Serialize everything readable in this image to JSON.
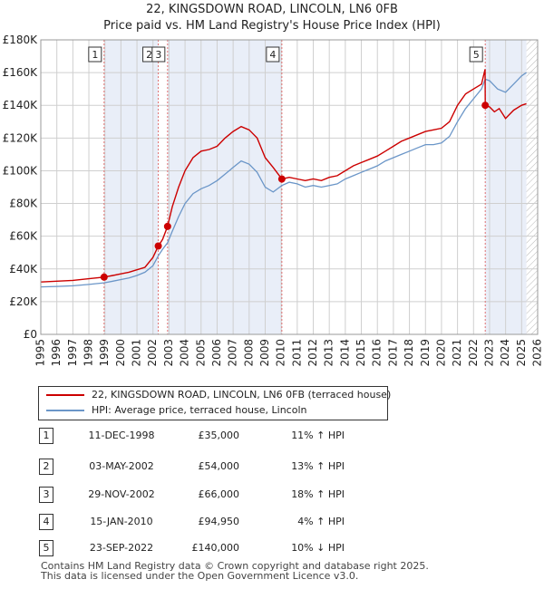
{
  "title": "22, KINGSDOWN ROAD, LINCOLN, LN6 0FB",
  "subtitle": "Price paid vs. HM Land Registry's House Price Index (HPI)",
  "colors": {
    "property": "#cc0000",
    "hpi": "#6b96c8",
    "band": "#e9eef8",
    "grid": "#cfcfcf",
    "vline": "#e07070"
  },
  "chart_data": {
    "type": "line",
    "ylabel": "",
    "xlabel": "",
    "xlim": [
      1995,
      2026
    ],
    "ylim": [
      0,
      180000
    ],
    "grid": true,
    "y_ticks": [
      0,
      20000,
      40000,
      60000,
      80000,
      100000,
      120000,
      140000,
      160000,
      180000
    ],
    "y_tick_labels": [
      "£0",
      "£20K",
      "£40K",
      "£60K",
      "£80K",
      "£100K",
      "£120K",
      "£140K",
      "£160K",
      "£180K"
    ],
    "x_ticks": [
      1995,
      1996,
      1997,
      1998,
      1999,
      2000,
      2001,
      2002,
      2003,
      2004,
      2005,
      2006,
      2007,
      2008,
      2009,
      2010,
      2011,
      2012,
      2013,
      2014,
      2015,
      2016,
      2017,
      2018,
      2019,
      2020,
      2021,
      2022,
      2023,
      2024,
      2025,
      2026
    ],
    "x_tick_labels": [
      "1995",
      "1996",
      "1997",
      "1998",
      "1999",
      "2000",
      "2001",
      "2002",
      "2003",
      "2004",
      "2005",
      "2006",
      "2007",
      "2008",
      "2009",
      "2010",
      "2011",
      "2012",
      "2013",
      "2014",
      "2015",
      "2016",
      "2017",
      "2018",
      "2019",
      "2020",
      "2021",
      "2022",
      "2023",
      "2024",
      "2025",
      "2026"
    ],
    "shaded_ranges": [
      [
        1998.95,
        2002.33
      ],
      [
        2002.91,
        2010.04
      ],
      [
        2022.73,
        2025.3
      ]
    ],
    "hatched_range": [
      2025.3,
      2026
    ],
    "series": [
      {
        "name": "22, KINGSDOWN ROAD, LINCOLN, LN6 0FB (terraced house)",
        "x": [
          1995.0,
          1996.0,
          1997.0,
          1998.0,
          1998.95,
          1999.5,
          2000.0,
          2000.5,
          2001.0,
          2001.5,
          2002.0,
          2002.33,
          2002.6,
          2002.91,
          2003.2,
          2003.6,
          2004.0,
          2004.5,
          2005.0,
          2005.5,
          2006.0,
          2006.5,
          2007.0,
          2007.5,
          2008.0,
          2008.5,
          2009.0,
          2009.5,
          2010.04,
          2010.5,
          2011.0,
          2011.5,
          2012.0,
          2012.5,
          2013.0,
          2013.5,
          2014.0,
          2014.5,
          2015.0,
          2015.5,
          2016.0,
          2016.5,
          2017.0,
          2017.5,
          2018.0,
          2018.5,
          2019.0,
          2019.5,
          2020.0,
          2020.5,
          2021.0,
          2021.5,
          2022.0,
          2022.5,
          2022.72,
          2022.73,
          2023.0,
          2023.3,
          2023.6,
          2024.0,
          2024.5,
          2025.0,
          2025.3
        ],
        "values": [
          32000,
          32500,
          33000,
          34000,
          35000,
          36000,
          37000,
          38000,
          39500,
          41000,
          47000,
          54000,
          58000,
          66000,
          78000,
          90000,
          100000,
          108000,
          112000,
          113000,
          115000,
          120000,
          124000,
          127000,
          125000,
          120000,
          108000,
          102000,
          94950,
          96000,
          95000,
          94000,
          95000,
          94000,
          96000,
          97000,
          100000,
          103000,
          105000,
          107000,
          109000,
          112000,
          115000,
          118000,
          120000,
          122000,
          124000,
          125000,
          126000,
          130000,
          140000,
          147000,
          150000,
          153000,
          162000,
          140000,
          139000,
          136000,
          138000,
          132000,
          137000,
          140000,
          141000
        ]
      },
      {
        "name": "HPI: Average price, terraced house, Lincoln",
        "x": [
          1995.0,
          1996.0,
          1997.0,
          1998.0,
          1998.95,
          1999.5,
          2000.0,
          2000.5,
          2001.0,
          2001.5,
          2002.0,
          2002.33,
          2002.6,
          2002.91,
          2003.2,
          2003.6,
          2004.0,
          2004.5,
          2005.0,
          2005.5,
          2006.0,
          2006.5,
          2007.0,
          2007.5,
          2008.0,
          2008.5,
          2009.0,
          2009.5,
          2010.04,
          2010.5,
          2011.0,
          2011.5,
          2012.0,
          2012.5,
          2013.0,
          2013.5,
          2014.0,
          2014.5,
          2015.0,
          2015.5,
          2016.0,
          2016.5,
          2017.0,
          2017.5,
          2018.0,
          2018.5,
          2019.0,
          2019.5,
          2020.0,
          2020.5,
          2021.0,
          2021.5,
          2022.0,
          2022.5,
          2022.73,
          2023.0,
          2023.5,
          2024.0,
          2024.5,
          2025.0,
          2025.3
        ],
        "values": [
          29000,
          29300,
          29700,
          30500,
          31500,
          32500,
          33500,
          34500,
          36000,
          38000,
          42000,
          48000,
          52000,
          56000,
          63000,
          72000,
          80000,
          86000,
          89000,
          91000,
          94000,
          98000,
          102000,
          106000,
          104000,
          99000,
          90000,
          87000,
          91000,
          93000,
          92000,
          90000,
          91000,
          90000,
          91000,
          92000,
          95000,
          97000,
          99000,
          101000,
          103000,
          106000,
          108000,
          110000,
          112000,
          114000,
          116000,
          116000,
          117000,
          121000,
          130000,
          138000,
          144000,
          150000,
          156000,
          155000,
          150000,
          148000,
          153000,
          158000,
          160000
        ]
      }
    ],
    "markers": [
      {
        "label": "1",
        "x": 1998.95,
        "y": 35000
      },
      {
        "label": "2",
        "x": 2002.33,
        "y": 54000
      },
      {
        "label": "3",
        "x": 2002.91,
        "y": 66000
      },
      {
        "label": "4",
        "x": 2010.04,
        "y": 94950
      },
      {
        "label": "5",
        "x": 2022.73,
        "y": 140000
      }
    ]
  },
  "legend": {
    "property_label": "22, KINGSDOWN ROAD, LINCOLN, LN6 0FB (terraced house)",
    "hpi_label": "HPI: Average price, terraced house, Lincoln"
  },
  "sales": [
    {
      "num": "1",
      "date": "11-DEC-1998",
      "price": "£35,000",
      "hpi": "11% ↑ HPI"
    },
    {
      "num": "2",
      "date": "03-MAY-2002",
      "price": "£54,000",
      "hpi": "13% ↑ HPI"
    },
    {
      "num": "3",
      "date": "29-NOV-2002",
      "price": "£66,000",
      "hpi": "18% ↑ HPI"
    },
    {
      "num": "4",
      "date": "15-JAN-2010",
      "price": "£94,950",
      "hpi": "4% ↑ HPI"
    },
    {
      "num": "5",
      "date": "23-SEP-2022",
      "price": "£140,000",
      "hpi": "10% ↓ HPI"
    }
  ],
  "footer": {
    "line1": "Contains HM Land Registry data © Crown copyright and database right 2025.",
    "line2": "This data is licensed under the Open Government Licence v3.0."
  }
}
